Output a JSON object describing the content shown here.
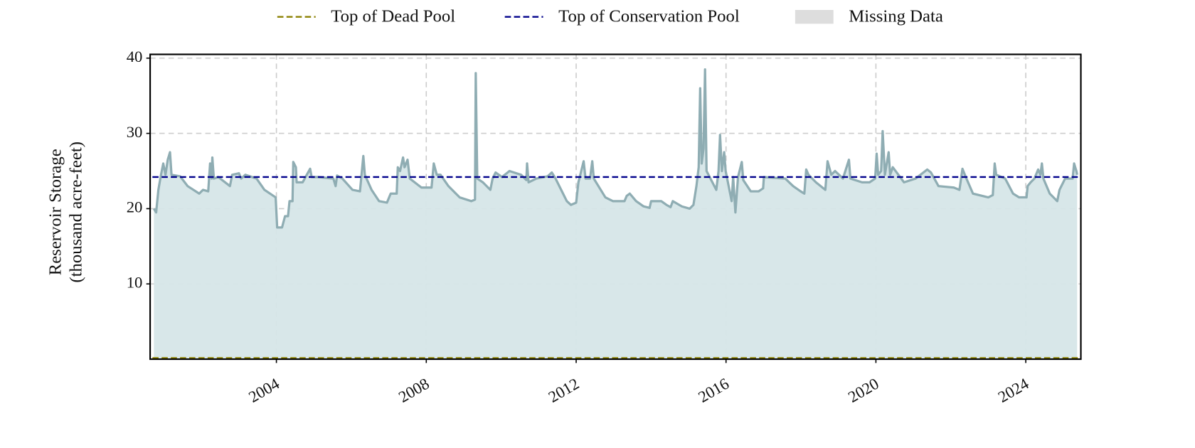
{
  "chart_data": {
    "type": "line",
    "ylabel": [
      "Reservoir Storage",
      "(thousand acre-feet)"
    ],
    "x": [
      2000.73,
      2000.79,
      2000.85,
      2000.92,
      2000.98,
      2001.04,
      2001.1,
      2001.16,
      2001.2,
      2001.43,
      2001.63,
      2001.94,
      2002.04,
      2002.18,
      2002.23,
      2002.27,
      2002.29,
      2002.33,
      2002.45,
      2002.76,
      2002.82,
      2003.0,
      2003.06,
      2003.17,
      2003.47,
      2003.68,
      2003.98,
      2004.02,
      2004.15,
      2004.23,
      2004.31,
      2004.35,
      2004.43,
      2004.45,
      2004.52,
      2004.54,
      2004.7,
      2004.9,
      2004.94,
      2005.11,
      2005.52,
      2005.58,
      2005.62,
      2005.76,
      2006.03,
      2006.23,
      2006.32,
      2006.36,
      2006.54,
      2006.74,
      2006.95,
      2007.05,
      2007.21,
      2007.24,
      2007.3,
      2007.38,
      2007.42,
      2007.5,
      2007.56,
      2007.87,
      2008.14,
      2008.2,
      2008.28,
      2008.38,
      2008.59,
      2008.89,
      2009.2,
      2009.3,
      2009.32,
      2009.36,
      2009.51,
      2009.71,
      2009.77,
      2009.85,
      2010.02,
      2010.22,
      2010.53,
      2010.67,
      2010.69,
      2010.73,
      2010.94,
      2011.24,
      2011.35,
      2011.45,
      2011.65,
      2011.75,
      2011.86,
      2012.0,
      2012.06,
      2012.2,
      2012.25,
      2012.37,
      2012.43,
      2012.47,
      2012.78,
      2012.98,
      2013.29,
      2013.35,
      2013.43,
      2013.6,
      2013.8,
      2013.96,
      2014.0,
      2014.27,
      2014.41,
      2014.52,
      2014.58,
      2014.82,
      2015.03,
      2015.13,
      2015.21,
      2015.27,
      2015.31,
      2015.35,
      2015.4,
      2015.44,
      2015.48,
      2015.74,
      2015.8,
      2015.84,
      2015.89,
      2015.95,
      2015.99,
      2016.15,
      2016.19,
      2016.25,
      2016.32,
      2016.42,
      2016.46,
      2016.66,
      2016.87,
      2016.99,
      2017.01,
      2017.58,
      2017.79,
      2017.99,
      2018.09,
      2018.14,
      2018.2,
      2018.4,
      2018.65,
      2018.71,
      2018.81,
      2018.91,
      2019.12,
      2019.28,
      2019.32,
      2019.63,
      2019.83,
      2019.98,
      2020.02,
      2020.06,
      2020.14,
      2020.18,
      2020.24,
      2020.34,
      2020.38,
      2020.45,
      2020.75,
      2021.06,
      2021.37,
      2021.47,
      2021.67,
      2022.08,
      2022.23,
      2022.31,
      2022.39,
      2022.59,
      2023.0,
      2023.12,
      2023.17,
      2023.21,
      2023.45,
      2023.66,
      2023.82,
      2024.02,
      2024.05,
      2024.13,
      2024.23,
      2024.33,
      2024.39,
      2024.43,
      2024.47,
      2024.64,
      2024.84,
      2024.9,
      2025.05,
      2025.25,
      2025.29,
      2025.35,
      2025.37
    ],
    "series": [
      {
        "color": "#8fadb3",
        "fill": "#d6e6e8",
        "values": [
          20,
          19.5,
          22.5,
          24.5,
          26,
          24.5,
          26.5,
          27.5,
          24.5,
          24.3,
          23,
          22,
          22.5,
          22.3,
          26,
          24,
          26.8,
          24,
          24.2,
          23,
          24.5,
          24.7,
          24,
          24.5,
          24,
          22.5,
          21.5,
          17.5,
          17.5,
          19,
          19,
          21,
          21,
          26.2,
          25.5,
          23.5,
          23.5,
          25.3,
          24.2,
          24.2,
          24,
          23,
          24.4,
          24,
          22.5,
          22.3,
          27,
          24.5,
          22.5,
          21,
          20.8,
          22,
          22,
          25.5,
          25,
          26.8,
          25.5,
          26.5,
          24,
          22.8,
          22.8,
          26,
          24.5,
          24.5,
          23,
          21.5,
          21,
          21.2,
          38,
          24,
          23.5,
          22.5,
          24,
          24.8,
          24.2,
          25,
          24.5,
          23.8,
          26,
          23.5,
          24,
          24.3,
          24.8,
          24,
          22,
          21,
          20.5,
          20.8,
          23.5,
          26.3,
          24,
          24,
          26.3,
          24,
          21.5,
          21,
          21,
          21.7,
          22,
          21,
          20.3,
          20.1,
          21,
          21,
          20.5,
          20.2,
          21,
          20.3,
          20,
          20.5,
          23,
          25.5,
          36,
          26,
          28,
          38.5,
          25,
          22.5,
          25,
          29.8,
          25,
          27.5,
          25,
          21,
          24.2,
          19.5,
          24.2,
          26.2,
          23.8,
          22.3,
          22.3,
          22.7,
          24.2,
          24,
          23,
          22.3,
          22,
          25.2,
          24.5,
          23.5,
          22.5,
          26.3,
          24.5,
          25,
          24,
          26.5,
          24,
          23.5,
          23.5,
          24,
          27.3,
          24.5,
          25,
          30.3,
          24.5,
          27.5,
          24.5,
          25.5,
          23.5,
          24,
          25.2,
          24.8,
          23,
          22.8,
          22.5,
          25.3,
          24.3,
          22,
          21.5,
          21.8,
          26,
          24.5,
          24,
          22,
          21.5,
          21.5,
          23,
          23.5,
          24,
          25.2,
          24.5,
          26,
          24,
          22,
          21,
          22.5,
          24,
          24,
          26,
          25,
          24.5
        ]
      }
    ],
    "reference_lines": [
      {
        "name": "Top of Dead Pool",
        "value": 0,
        "color": "#8b8000"
      },
      {
        "name": "Top of Conservation Pool",
        "value": 24.2,
        "color": "#00008b"
      }
    ],
    "legend_patches": [
      {
        "name": "Missing Data",
        "color": "#dddddd"
      }
    ],
    "xlim": [
      2000.63,
      2025.47
    ],
    "xticks": [
      2004,
      2008,
      2012,
      2016,
      2020,
      2024
    ],
    "ylim": [
      0,
      40.5
    ],
    "yticks": [
      10,
      20,
      30,
      40
    ],
    "grid": true
  }
}
